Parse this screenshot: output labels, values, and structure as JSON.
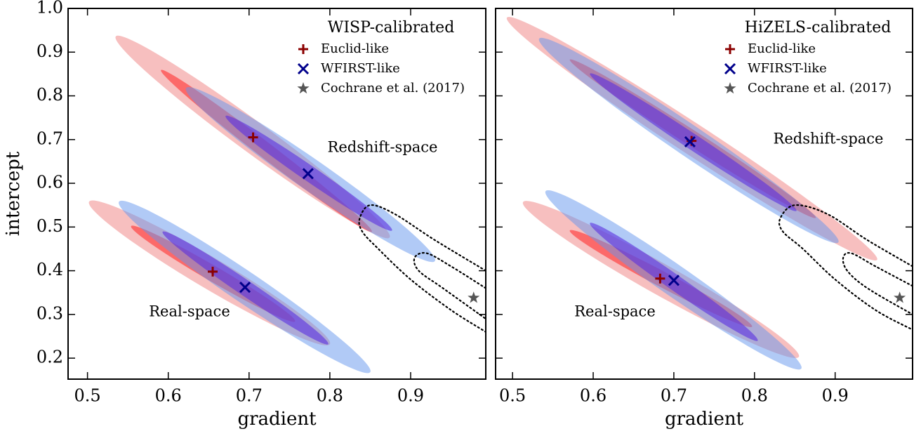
{
  "chart_data": [
    {
      "type": "scatter",
      "legend_title": "WISP-calibrated",
      "xlabel": "gradient",
      "ylabel": "intercept",
      "xlim": [
        0.476,
        0.993
      ],
      "ylim": [
        0.152,
        1.0
      ],
      "xticks": [
        0.5,
        0.6,
        0.7,
        0.8,
        0.9
      ],
      "yticks": [
        0.2,
        0.3,
        0.4,
        0.5,
        0.6,
        0.7,
        0.8,
        0.9,
        {
          "value": 1,
          "label": "1.0"
        }
      ],
      "annotations": [
        "Redshift-space",
        "Real-space"
      ],
      "series": [
        {
          "name": "Euclid-like",
          "color": "#8b0000",
          "marker": "plus",
          "x": [
            0.705,
            0.655
          ],
          "values": [
            0.705,
            0.398
          ]
        },
        {
          "name": "WFIRST-like",
          "color": "#00008b",
          "marker": "x",
          "x": [
            0.773,
            0.695
          ],
          "values": [
            0.622,
            0.362
          ]
        },
        {
          "name": "Cochrane et al. (2017)",
          "color": "#555555",
          "marker": "star",
          "x": [
            0.978
          ],
          "values": [
            0.338
          ]
        }
      ],
      "contours": [
        {
          "color": "#f08080",
          "level": 2,
          "x": [
            0.535,
            0.874
          ],
          "y": [
            0.936,
            0.476
          ]
        },
        {
          "color": "#ff3030",
          "level": 1,
          "x": [
            0.591,
            0.852
          ],
          "y": [
            0.859,
            0.489
          ]
        },
        {
          "color": "#6495ed",
          "level": 2,
          "x": [
            0.622,
            0.93
          ],
          "y": [
            0.818,
            0.422
          ]
        },
        {
          "color": "#5a2ee0",
          "level": 1,
          "x": [
            0.671,
            0.877
          ],
          "y": [
            0.754,
            0.492
          ]
        },
        {
          "color": "#f08080",
          "level": 2,
          "x": [
            0.502,
            0.8
          ],
          "y": [
            0.558,
            0.232
          ]
        },
        {
          "color": "#ff3030",
          "level": 1,
          "x": [
            0.554,
            0.757
          ],
          "y": [
            0.502,
            0.284
          ]
        },
        {
          "color": "#6495ed",
          "level": 2,
          "x": [
            0.539,
            0.85
          ],
          "y": [
            0.558,
            0.168
          ]
        },
        {
          "color": "#5a2ee0",
          "level": 1,
          "x": [
            0.593,
            0.798
          ],
          "y": [
            0.489,
            0.232
          ]
        }
      ],
      "reference_contours": [
        {
          "x": [
            0.993,
            0.93,
            0.88,
            0.85,
            0.837,
            0.84,
            0.86,
            0.9,
            0.95,
            0.993
          ],
          "y": [
            0.4,
            0.47,
            0.53,
            0.55,
            0.52,
            0.49,
            0.45,
            0.38,
            0.31,
            0.26
          ]
        },
        {
          "x": [
            0.993,
            0.95,
            0.92,
            0.905,
            0.91,
            0.94,
            0.993
          ],
          "y": [
            0.36,
            0.41,
            0.44,
            0.43,
            0.4,
            0.36,
            0.29
          ]
        }
      ]
    },
    {
      "type": "scatter",
      "legend_title": "HiZELS-calibrated",
      "xlabel": "gradient",
      "xlim": [
        0.479,
        0.996
      ],
      "ylim": [
        0.152,
        1.0
      ],
      "xticks": [
        0.5,
        0.6,
        0.7,
        0.8,
        0.9
      ],
      "yticks": [
        0.2,
        0.3,
        0.4,
        0.5,
        0.6,
        0.7,
        0.8,
        0.9,
        1
      ],
      "annotations": [
        "Redshift-space",
        "Real-space"
      ],
      "series": [
        {
          "name": "Euclid-like",
          "color": "#8b0000",
          "marker": "plus",
          "x": [
            0.722,
            0.683
          ],
          "values": [
            0.697,
            0.382
          ]
        },
        {
          "name": "WFIRST-like",
          "color": "#00008b",
          "marker": "x",
          "x": [
            0.72,
            0.7
          ],
          "values": [
            0.695,
            0.378
          ]
        },
        {
          "name": "Cochrane et al. (2017)",
          "color": "#555555",
          "marker": "star",
          "x": [
            0.98
          ],
          "values": [
            0.338
          ]
        }
      ],
      "contours": [
        {
          "color": "#f08080",
          "level": 2,
          "x": [
            0.493,
            0.952
          ],
          "y": [
            0.979,
            0.425
          ]
        },
        {
          "color": "#ff3030",
          "level": 1,
          "x": [
            0.571,
            0.876
          ],
          "y": [
            0.883,
            0.521
          ]
        },
        {
          "color": "#6495ed",
          "level": 2,
          "x": [
            0.533,
            0.904
          ],
          "y": [
            0.931,
            0.465
          ]
        },
        {
          "color": "#5a2ee0",
          "level": 1,
          "x": [
            0.596,
            0.852
          ],
          "y": [
            0.851,
            0.537
          ]
        },
        {
          "color": "#f08080",
          "level": 2,
          "x": [
            0.513,
            0.855
          ],
          "y": [
            0.557,
            0.203
          ]
        },
        {
          "color": "#ff3030",
          "level": 1,
          "x": [
            0.571,
            0.797
          ],
          "y": [
            0.492,
            0.272
          ]
        },
        {
          "color": "#6495ed",
          "level": 2,
          "x": [
            0.541,
            0.858
          ],
          "y": [
            0.582,
            0.176
          ]
        },
        {
          "color": "#5a2ee0",
          "level": 1,
          "x": [
            0.596,
            0.804
          ],
          "y": [
            0.509,
            0.24
          ]
        }
      ],
      "reference_contours": [
        {
          "x": [
            0.996,
            0.94,
            0.89,
            0.85,
            0.832,
            0.835,
            0.86,
            0.9,
            0.95,
            0.996
          ],
          "y": [
            0.41,
            0.47,
            0.53,
            0.55,
            0.52,
            0.49,
            0.45,
            0.38,
            0.31,
            0.265
          ]
        },
        {
          "x": [
            0.996,
            0.95,
            0.92,
            0.91,
            0.915,
            0.94,
            0.996
          ],
          "y": [
            0.365,
            0.41,
            0.44,
            0.43,
            0.4,
            0.36,
            0.3
          ]
        }
      ]
    }
  ]
}
